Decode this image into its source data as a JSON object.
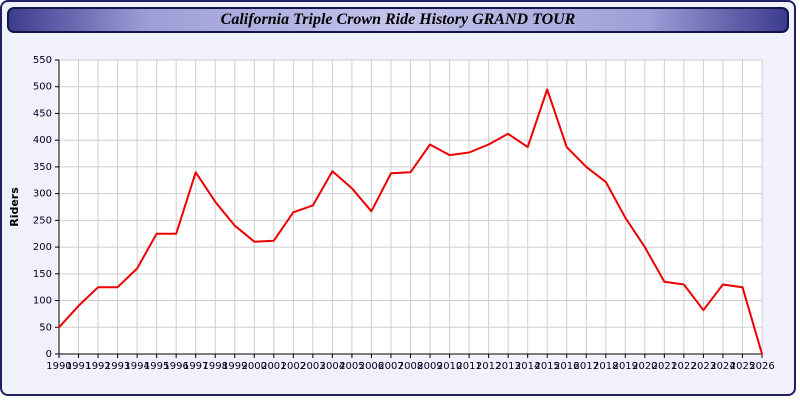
{
  "window": {
    "background": "#f1f1fb",
    "border_color": "#1f1f66"
  },
  "header": {
    "title": "California Triple Crown Ride History GRAND TOUR"
  },
  "chart_data": {
    "type": "line",
    "title": "California Triple Crown Ride History GRAND TOUR",
    "xlabel": "",
    "ylabel": "Riders",
    "ylim": [
      0,
      550
    ],
    "ytick_step": 50,
    "grid": true,
    "legend_position": "none",
    "line_color": "#ee0000",
    "plot_background": "#ffffff",
    "grid_color": "#cfcfcf",
    "x": [
      1990,
      1991,
      1992,
      1993,
      1994,
      1995,
      1996,
      1997,
      1998,
      1999,
      2000,
      2001,
      2002,
      2003,
      2004,
      2005,
      2006,
      2007,
      2008,
      2009,
      2010,
      2011,
      2012,
      2013,
      2014,
      2015,
      2016,
      2017,
      2018,
      2019,
      2020,
      2021,
      2022,
      2023,
      2024,
      2025,
      2026
    ],
    "series": [
      {
        "name": "Riders",
        "values": [
          50,
          90,
          125,
          125,
          160,
          225,
          225,
          340,
          285,
          240,
          210,
          212,
          265,
          278,
          342,
          310,
          267,
          338,
          340,
          392,
          372,
          377,
          392,
          412,
          387,
          495,
          387,
          350,
          322,
          255,
          200,
          135,
          130,
          82,
          130,
          125,
          0
        ]
      }
    ]
  }
}
